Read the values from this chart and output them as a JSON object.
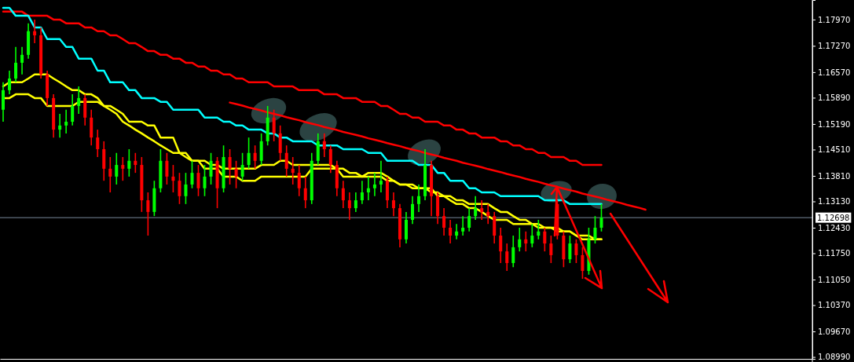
{
  "chart_data": {
    "type": "candlestick",
    "categories": [
      null,
      null,
      null,
      null,
      null,
      null,
      null,
      null,
      null,
      null,
      null,
      null,
      null,
      null,
      null,
      null,
      null,
      null,
      null,
      null,
      null,
      null,
      null,
      null,
      null,
      null,
      null,
      null,
      null,
      null,
      null,
      null,
      null,
      null,
      null,
      null,
      null,
      null,
      null,
      null,
      null,
      null,
      null,
      null,
      null,
      null,
      null,
      null,
      null,
      null,
      null,
      null,
      null,
      null,
      null,
      null,
      null,
      null,
      null,
      null,
      null,
      null,
      null,
      null,
      null,
      null,
      null,
      null,
      null,
      null,
      null,
      null,
      null,
      null,
      null,
      null,
      null,
      null,
      null,
      null,
      null,
      null,
      null,
      null,
      null,
      null,
      null,
      null,
      null,
      null,
      null,
      null,
      null,
      null,
      null,
      null,
      null,
      null,
      null,
      null,
      null,
      null,
      null,
      null,
      null,
      null,
      null,
      null,
      null,
      null,
      null,
      null,
      null,
      null,
      null,
      null,
      null,
      null,
      null,
      null,
      null,
      null,
      null,
      null,
      null,
      null,
      null,
      null,
      null
    ],
    "ohlc": [
      [
        1.1557,
        1.163,
        1.1525,
        1.1609
      ],
      [
        1.1609,
        1.1661,
        1.1598,
        1.164
      ],
      [
        1.164,
        1.1724,
        1.163,
        1.1682
      ],
      [
        1.1682,
        1.1724,
        1.1651,
        1.1703
      ],
      [
        1.1703,
        1.1787,
        1.1693,
        1.1766
      ],
      [
        1.1766,
        1.1797,
        1.1734,
        1.1755
      ],
      [
        1.1755,
        1.1776,
        1.164,
        1.1651
      ],
      [
        1.1651,
        1.1661,
        1.1567,
        1.1588
      ],
      [
        1.1588,
        1.1598,
        1.1483,
        1.1504
      ],
      [
        1.1504,
        1.1546,
        1.1483,
        1.1515
      ],
      [
        1.1515,
        1.1557,
        1.1494,
        1.1525
      ],
      [
        1.1525,
        1.1598,
        1.1515,
        1.1567
      ],
      [
        1.1567,
        1.1619,
        1.1546,
        1.1588
      ],
      [
        1.1588,
        1.1598,
        1.1515,
        1.1536
      ],
      [
        1.1536,
        1.1557,
        1.1462,
        1.1483
      ],
      [
        1.1483,
        1.1504,
        1.1431,
        1.1452
      ],
      [
        1.1452,
        1.1473,
        1.1368,
        1.14
      ],
      [
        1.14,
        1.1431,
        1.1337,
        1.1379
      ],
      [
        1.1379,
        1.1442,
        1.1358,
        1.141
      ],
      [
        1.141,
        1.1431,
        1.1368,
        1.14
      ],
      [
        1.14,
        1.1452,
        1.1379,
        1.1421
      ],
      [
        1.1421,
        1.1442,
        1.1389,
        1.141
      ],
      [
        1.141,
        1.1431,
        1.1285,
        1.1316
      ],
      [
        1.1316,
        1.1337,
        1.1222,
        1.1285
      ],
      [
        1.1285,
        1.1368,
        1.1274,
        1.1348
      ],
      [
        1.1348,
        1.1452,
        1.1337,
        1.1421
      ],
      [
        1.1421,
        1.1442,
        1.1358,
        1.1379
      ],
      [
        1.1379,
        1.141,
        1.1337,
        1.1368
      ],
      [
        1.1368,
        1.1389,
        1.1306,
        1.1327
      ],
      [
        1.1327,
        1.1389,
        1.1306,
        1.1358
      ],
      [
        1.1358,
        1.1421,
        1.1348,
        1.1389
      ],
      [
        1.1389,
        1.141,
        1.1327,
        1.1348
      ],
      [
        1.1348,
        1.141,
        1.1327,
        1.1379
      ],
      [
        1.1379,
        1.1442,
        1.1358,
        1.1421
      ],
      [
        1.1421,
        1.1431,
        1.1295,
        1.1348
      ],
      [
        1.1348,
        1.1462,
        1.1337,
        1.1431
      ],
      [
        1.1431,
        1.1452,
        1.1358,
        1.14
      ],
      [
        1.14,
        1.1421,
        1.1348,
        1.1379
      ],
      [
        1.1379,
        1.1442,
        1.1368,
        1.141
      ],
      [
        1.141,
        1.1483,
        1.14,
        1.1442
      ],
      [
        1.1442,
        1.1462,
        1.14,
        1.1421
      ],
      [
        1.1421,
        1.1494,
        1.141,
        1.1473
      ],
      [
        1.1473,
        1.1567,
        1.1462,
        1.1536
      ],
      [
        1.1536,
        1.1557,
        1.1473,
        1.1494
      ],
      [
        1.1494,
        1.1515,
        1.1421,
        1.1442
      ],
      [
        1.1442,
        1.1462,
        1.1379,
        1.14
      ],
      [
        1.14,
        1.1431,
        1.1358,
        1.1389
      ],
      [
        1.1389,
        1.141,
        1.1327,
        1.1348
      ],
      [
        1.1348,
        1.1379,
        1.1295,
        1.1316
      ],
      [
        1.1316,
        1.1442,
        1.1306,
        1.1421
      ],
      [
        1.1421,
        1.1494,
        1.141,
        1.1473
      ],
      [
        1.1473,
        1.1494,
        1.1431,
        1.1452
      ],
      [
        1.1452,
        1.1462,
        1.1389,
        1.141
      ],
      [
        1.141,
        1.1421,
        1.1327,
        1.1348
      ],
      [
        1.1348,
        1.1368,
        1.1295,
        1.1316
      ],
      [
        1.1316,
        1.1337,
        1.1264,
        1.1295
      ],
      [
        1.1295,
        1.1337,
        1.1285,
        1.1316
      ],
      [
        1.1316,
        1.1368,
        1.1306,
        1.1337
      ],
      [
        1.1337,
        1.1379,
        1.1316,
        1.1348
      ],
      [
        1.1348,
        1.1389,
        1.1327,
        1.1358
      ],
      [
        1.1358,
        1.1421,
        1.1337,
        1.1368
      ],
      [
        1.1368,
        1.1379,
        1.1295,
        1.1316
      ],
      [
        1.1316,
        1.1337,
        1.1274,
        1.1295
      ],
      [
        1.1295,
        1.1306,
        1.1191,
        1.1212
      ],
      [
        1.1212,
        1.1285,
        1.1201,
        1.1264
      ],
      [
        1.1264,
        1.1327,
        1.1253,
        1.1306
      ],
      [
        1.1306,
        1.1358,
        1.1285,
        1.1327
      ],
      [
        1.1327,
        1.1452,
        1.1316,
        1.141
      ],
      [
        1.141,
        1.1421,
        1.1274,
        1.1327
      ],
      [
        1.1327,
        1.1337,
        1.1253,
        1.1274
      ],
      [
        1.1274,
        1.1295,
        1.1222,
        1.1243
      ],
      [
        1.1243,
        1.1264,
        1.1201,
        1.1222
      ],
      [
        1.1222,
        1.1253,
        1.1212,
        1.1233
      ],
      [
        1.1233,
        1.1274,
        1.1222,
        1.1243
      ],
      [
        1.1243,
        1.1295,
        1.1233,
        1.1274
      ],
      [
        1.1274,
        1.1327,
        1.1264,
        1.1295
      ],
      [
        1.1295,
        1.1316,
        1.1264,
        1.1285
      ],
      [
        1.1285,
        1.1306,
        1.1253,
        1.1274
      ],
      [
        1.1274,
        1.1285,
        1.1201,
        1.1222
      ],
      [
        1.1222,
        1.1243,
        1.1149,
        1.118
      ],
      [
        1.118,
        1.1201,
        1.1128,
        1.1149
      ],
      [
        1.1149,
        1.1222,
        1.1138,
        1.1191
      ],
      [
        1.1191,
        1.1243,
        1.118,
        1.1212
      ],
      [
        1.1212,
        1.1233,
        1.118,
        1.1201
      ],
      [
        1.1201,
        1.1253,
        1.1191,
        1.1222
      ],
      [
        1.1222,
        1.1264,
        1.1212,
        1.1233
      ],
      [
        1.1233,
        1.1243,
        1.118,
        1.1201
      ],
      [
        1.1201,
        1.1222,
        1.1149,
        1.117
      ],
      [
        1.1306,
        1.1316,
        1.1212,
        1.1222
      ],
      [
        1.1222,
        1.1233,
        1.1138,
        1.1159
      ],
      [
        1.1159,
        1.1222,
        1.1149,
        1.1201
      ],
      [
        1.1201,
        1.1212,
        1.1149,
        1.117
      ],
      [
        1.117,
        1.1191,
        1.1107,
        1.1128
      ],
      [
        1.1128,
        1.1243,
        1.1118,
        1.1212
      ],
      [
        1.1212,
        1.1274,
        1.1201,
        1.1243
      ],
      [
        1.1243,
        1.1306,
        1.1233,
        1.127
      ],
      null,
      null,
      null,
      null,
      null,
      null,
      null,
      null,
      null,
      null,
      null,
      null,
      null,
      null,
      null,
      null,
      null,
      null,
      null,
      null,
      null,
      null,
      null,
      null,
      null,
      null,
      null,
      null,
      null,
      null,
      null,
      null,
      null
    ],
    "colors": [
      "#00ff00",
      "#00ff00",
      "#00ff00",
      "#00ff00",
      "#00ff00",
      "#ff0000",
      "#ff0000",
      "#ff0000",
      "#ff0000",
      "#00ff00",
      "#00ff00",
      "#00ff00",
      "#00ff00",
      "#ff0000",
      "#ff0000",
      "#ff0000",
      "#ff0000",
      "#ff0000",
      "#00ff00",
      "#ff0000",
      "#00ff00",
      "#ff0000",
      "#ff0000",
      "#ff0000",
      "#00ff00",
      "#00ff00",
      "#ff0000",
      "#ff0000",
      "#ff0000",
      "#00ff00",
      "#00ff00",
      "#ff0000",
      "#00ff00",
      "#00ff00",
      "#ff0000",
      "#00ff00",
      "#ff0000",
      "#ff0000",
      "#00ff00",
      "#00ff00",
      "#ff0000",
      "#00ff00",
      "#00ff00",
      "#ff0000",
      "#ff0000",
      "#ff0000",
      "#ff0000",
      "#ff0000",
      "#ff0000",
      "#00ff00",
      "#00ff00",
      "#ff0000",
      "#ff0000",
      "#ff0000",
      "#ff0000",
      "#ff0000",
      "#00ff00",
      "#00ff00",
      "#00ff00",
      "#00ff00",
      "#00ff00",
      "#ff0000",
      "#ff0000",
      "#ff0000",
      "#00ff00",
      "#00ff00",
      "#00ff00",
      "#00ff00",
      "#ff0000",
      "#ff0000",
      "#ff0000",
      "#ff0000",
      "#00ff00",
      "#00ff00",
      "#00ff00",
      "#00ff00",
      "#ff0000",
      "#ff0000",
      "#ff0000",
      "#ff0000",
      "#ff0000",
      "#00ff00",
      "#00ff00",
      "#ff0000",
      "#00ff00",
      "#00ff00",
      "#ff0000",
      "#ff0000",
      "#ff0000",
      "#ff0000",
      "#00ff00",
      "#ff0000",
      "#ff0000",
      "#00ff00",
      "#00ff00",
      "#00ff00",
      null,
      null,
      null,
      null,
      null,
      null,
      null,
      null,
      null,
      null,
      null,
      null,
      null,
      null,
      null,
      null,
      null,
      null,
      null,
      null,
      null,
      null,
      null,
      null,
      null,
      null,
      null,
      null,
      null,
      null,
      null,
      null,
      null
    ],
    "series": [
      {
        "type": "line",
        "color": "#ff0000",
        "values": [
          1.1818,
          1.1818,
          1.1818,
          1.1818,
          1.1807,
          1.1807,
          1.1807,
          1.1807,
          1.1797,
          1.1797,
          1.1787,
          1.1787,
          1.1787,
          1.1776,
          1.1776,
          1.1766,
          1.1766,
          1.1755,
          1.1755,
          1.1745,
          1.1734,
          1.1734,
          1.1724,
          1.1713,
          1.1713,
          1.1703,
          1.1703,
          1.1693,
          1.1693,
          1.1682,
          1.1682,
          1.1672,
          1.1672,
          1.1661,
          1.1661,
          1.1651,
          1.1651,
          1.164,
          1.164,
          1.163,
          1.163,
          1.163,
          1.163,
          1.1619,
          1.1619,
          1.1619,
          1.1619,
          1.1609,
          1.1609,
          1.1609,
          1.1609,
          1.1598,
          1.1598,
          1.1598,
          1.1588,
          1.1588,
          1.1588,
          1.1578,
          1.1578,
          1.1578,
          1.1567,
          1.1567,
          1.1557,
          1.1546,
          1.1546,
          1.1536,
          1.1536,
          1.1525,
          1.1525,
          1.1525,
          1.1515,
          1.1515,
          1.1504,
          1.1504,
          1.1494,
          1.1494,
          1.1483,
          1.1483,
          1.1483,
          1.1473,
          1.1473,
          1.1462,
          1.1462,
          1.1452,
          1.1452,
          1.1442,
          1.1442,
          1.1431,
          1.1431,
          1.1431,
          1.1421,
          1.1421,
          1.141,
          1.141,
          1.141,
          1.141,
          null,
          null,
          null,
          null,
          null,
          null,
          null,
          null,
          null,
          null,
          null,
          null,
          null,
          null,
          null,
          null,
          null,
          null,
          null,
          null,
          null,
          null,
          null,
          null,
          null,
          null,
          null,
          null,
          null,
          null,
          null,
          null,
          null
        ]
      },
      {
        "type": "line",
        "color": "#00ffff",
        "values": [
          1.1828,
          1.1828,
          1.1807,
          1.1807,
          1.1807,
          1.1776,
          1.1776,
          1.1745,
          1.1745,
          1.1745,
          1.1724,
          1.1724,
          1.1693,
          1.1693,
          1.1693,
          1.1661,
          1.1661,
          1.163,
          1.163,
          1.163,
          1.1609,
          1.1609,
          1.1588,
          1.1588,
          1.1588,
          1.1578,
          1.1578,
          1.1557,
          1.1557,
          1.1557,
          1.1557,
          1.1557,
          1.1536,
          1.1536,
          1.1536,
          1.1525,
          1.1525,
          1.1515,
          1.1515,
          1.1504,
          1.1504,
          1.1504,
          1.1494,
          1.1494,
          1.1483,
          1.1483,
          1.1473,
          1.1473,
          1.1473,
          1.1473,
          1.1462,
          1.1462,
          1.1462,
          1.1462,
          1.1452,
          1.1452,
          1.1452,
          1.1452,
          1.1442,
          1.1442,
          1.1442,
          1.1421,
          1.1421,
          1.1421,
          1.1421,
          1.1421,
          1.141,
          1.141,
          1.141,
          1.1389,
          1.1389,
          1.1368,
          1.1368,
          1.1368,
          1.1348,
          1.1348,
          1.1337,
          1.1337,
          1.1337,
          1.1327,
          1.1327,
          1.1327,
          1.1327,
          1.1327,
          1.1327,
          1.1327,
          1.1316,
          1.1316,
          1.1316,
          1.1316,
          1.1306,
          1.1306,
          1.1306,
          1.1306,
          1.1306,
          1.1306,
          null,
          null,
          null,
          null,
          null,
          null,
          null,
          null,
          null,
          null,
          null,
          null,
          null,
          null,
          null,
          null,
          null,
          null,
          null,
          null,
          null,
          null,
          null,
          null,
          null,
          null,
          null,
          null,
          null,
          null,
          null,
          null,
          null
        ]
      },
      {
        "type": "line",
        "color": "#ffff00",
        "values": [
          1.1619,
          1.163,
          1.163,
          1.163,
          1.164,
          1.1651,
          1.1651,
          1.1651,
          1.164,
          1.163,
          1.1619,
          1.1609,
          1.1609,
          1.1598,
          1.1598,
          1.1588,
          1.1567,
          1.1557,
          1.1546,
          1.1525,
          1.1515,
          1.1504,
          1.1494,
          1.1483,
          1.1473,
          1.1462,
          1.1452,
          1.1442,
          1.1442,
          1.1431,
          1.1421,
          1.1421,
          1.1421,
          1.141,
          1.141,
          1.14,
          1.14,
          1.14,
          1.14,
          1.14,
          1.14,
          1.141,
          1.141,
          1.141,
          1.1421,
          1.1421,
          1.141,
          1.141,
          1.141,
          1.141,
          1.141,
          1.141,
          1.141,
          1.14,
          1.14,
          1.1389,
          1.1389,
          1.1379,
          1.1379,
          1.1379,
          1.1379,
          1.1368,
          1.1368,
          1.1358,
          1.1358,
          1.1358,
          1.1348,
          1.1348,
          1.1337,
          1.1337,
          1.1327,
          1.1327,
          1.1316,
          1.1316,
          1.1306,
          1.1306,
          1.1306,
          1.1306,
          1.1295,
          1.1285,
          1.1285,
          1.1274,
          1.1264,
          1.1264,
          1.1253,
          1.1253,
          1.1243,
          1.1243,
          1.1243,
          1.1233,
          1.1233,
          1.1222,
          1.1222,
          1.1222,
          1.1212,
          1.1212,
          null,
          null,
          null,
          null,
          null,
          null,
          null,
          null,
          null,
          null,
          null,
          null,
          null,
          null,
          null,
          null,
          null,
          null,
          null,
          null,
          null,
          null,
          null,
          null,
          null,
          null,
          null,
          null,
          null,
          null,
          null,
          null,
          null
        ]
      },
      {
        "type": "line",
        "color": "#ffff00",
        "values": [
          1.1588,
          1.1588,
          1.1598,
          1.1598,
          1.1598,
          1.1588,
          1.1588,
          1.1567,
          1.1567,
          1.1567,
          1.1567,
          1.1567,
          1.1578,
          1.1578,
          1.1578,
          1.1578,
          1.1567,
          1.1567,
          1.1557,
          1.1546,
          1.1525,
          1.1525,
          1.1525,
          1.1515,
          1.1515,
          1.1483,
          1.1483,
          1.1483,
          1.1442,
          1.1442,
          1.1421,
          1.1421,
          1.14,
          1.14,
          1.14,
          1.1379,
          1.1379,
          1.1379,
          1.1368,
          1.1368,
          1.1368,
          1.1379,
          1.1379,
          1.1379,
          1.1379,
          1.1379,
          1.1379,
          1.1379,
          1.1379,
          1.14,
          1.14,
          1.14,
          1.14,
          1.14,
          1.1379,
          1.1379,
          1.1379,
          1.1379,
          1.1389,
          1.1389,
          1.1389,
          1.1379,
          1.1368,
          1.1358,
          1.1358,
          1.1348,
          1.1348,
          1.1348,
          1.1348,
          1.1327,
          1.1327,
          1.1316,
          1.1306,
          1.1306,
          1.1295,
          1.1295,
          1.1285,
          1.1274,
          1.1264,
          1.1264,
          1.1264,
          1.1253,
          1.1253,
          1.1253,
          1.1253,
          1.1243,
          1.1243,
          1.1243,
          1.1233,
          1.1233,
          1.1233,
          1.1222,
          1.1212,
          1.1212,
          1.1212,
          1.1212,
          null,
          null,
          null,
          null,
          null,
          null,
          null,
          null,
          null,
          null,
          null,
          null,
          null,
          null,
          null,
          null,
          null,
          null,
          null,
          null,
          null,
          null,
          null,
          null,
          null,
          null,
          null,
          null,
          null,
          null,
          null,
          null,
          null
        ]
      },
      {
        "type": "line",
        "color": "#ff0000",
        "values": [
          null,
          null,
          null,
          null,
          null,
          null,
          null,
          null,
          null,
          null,
          null,
          null,
          null,
          null,
          null,
          null,
          null,
          null,
          null,
          null,
          null,
          null,
          null,
          null,
          null,
          null,
          null,
          null,
          null,
          null,
          null,
          null,
          null,
          null,
          null,
          null,
          1.1576,
          1.1572,
          1.1568,
          1.1563,
          1.1559,
          1.1555,
          1.155,
          1.1546,
          1.1542,
          1.1537,
          1.1533,
          1.1529,
          1.1524,
          1.152,
          1.1516,
          1.1511,
          1.1507,
          1.1503,
          1.1498,
          1.1494,
          1.149,
          1.1486,
          1.1481,
          1.1477,
          1.1473,
          1.1468,
          1.1464,
          1.146,
          1.1455,
          1.1451,
          1.1447,
          1.1442,
          1.1438,
          1.1434,
          1.1429,
          1.1425,
          1.1421,
          1.1416,
          1.1412,
          1.1408,
          1.1404,
          1.1399,
          1.1395,
          1.1391,
          1.1386,
          1.1382,
          1.1378,
          1.1373,
          1.1369,
          1.1365,
          1.136,
          1.1356,
          1.1352,
          1.1347,
          1.1343,
          1.1339,
          1.1334,
          1.133,
          1.1326,
          1.1322,
          1.1317,
          1.1313,
          1.1309,
          1.1304,
          1.13,
          1.1296,
          1.1291,
          null,
          null,
          null,
          null,
          null,
          null,
          null,
          null,
          null,
          null,
          null,
          null,
          null,
          null,
          null,
          null,
          null,
          null,
          null,
          null,
          null,
          null,
          null,
          null,
          null,
          null
        ]
      }
    ],
    "ylim": [
      1.0894,
      1.1849
    ],
    "yticks": [
      {
        "value": 1.0899,
        "label": "1.08990"
      },
      {
        "value": 1.0967,
        "label": "1.09670"
      },
      {
        "value": 1.1037,
        "label": "1.10370"
      },
      {
        "value": 1.1105,
        "label": "1.11050"
      },
      {
        "value": 1.1175,
        "label": "1.11750"
      },
      {
        "value": 1.1243,
        "label": "1.12430"
      },
      {
        "value": 1.1313,
        "label": "1.13130"
      },
      {
        "value": 1.1381,
        "label": "1.13810"
      },
      {
        "value": 1.1451,
        "label": "1.14510"
      },
      {
        "value": 1.1519,
        "label": "1.15190"
      },
      {
        "value": 1.1589,
        "label": "1.15890"
      },
      {
        "value": 1.1657,
        "label": "1.16570"
      },
      {
        "value": 1.1727,
        "label": "1.17270"
      },
      {
        "value": 1.1797,
        "label": "1.17970"
      }
    ],
    "ref_lines": [
      {
        "axis": "y",
        "value": 1.12698,
        "label": "1.12698",
        "color": "#778899"
      }
    ],
    "tick_labels": "y"
  }
}
